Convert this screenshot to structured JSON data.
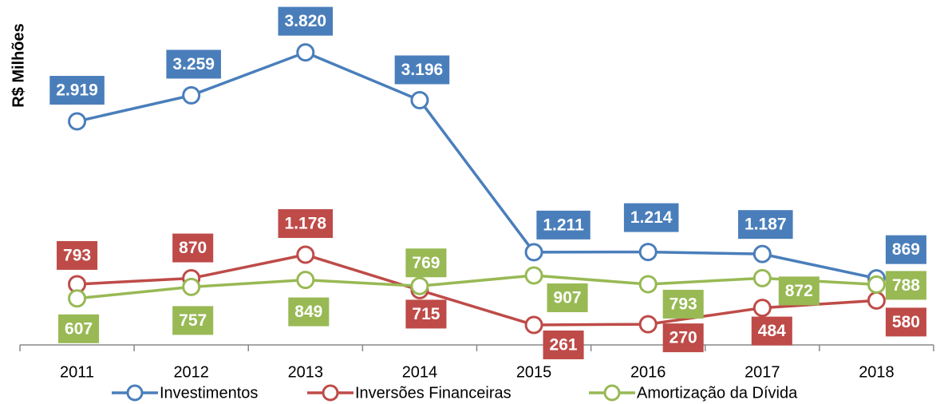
{
  "chart_data": {
    "type": "line",
    "ylabel": "R$ Milhões",
    "categories": [
      "2011",
      "2012",
      "2013",
      "2014",
      "2015",
      "2016",
      "2017",
      "2018"
    ],
    "ylim": [
      0,
      4400
    ],
    "series": [
      {
        "name": "Investimentos",
        "color": "#4a7ebb",
        "values": [
          2919,
          3259,
          3820,
          3196,
          1211,
          1214,
          1187,
          869
        ],
        "value_labels": [
          "2.919",
          "3.259",
          "3.820",
          "3.196",
          "1.211",
          "1.214",
          "1.187",
          "869"
        ]
      },
      {
        "name": "Inversões Financeiras",
        "color": "#be4b48",
        "values": [
          793,
          870,
          1178,
          715,
          261,
          270,
          484,
          580
        ],
        "value_labels": [
          "793",
          "870",
          "1.178",
          "715",
          "261",
          "270",
          "484",
          "580"
        ]
      },
      {
        "name": "Amortização da Dívida",
        "color": "#98b954",
        "values": [
          607,
          757,
          849,
          769,
          907,
          793,
          872,
          788
        ],
        "value_labels": [
          "607",
          "757",
          "849",
          "769",
          "907",
          "793",
          "872",
          "788"
        ]
      }
    ]
  }
}
